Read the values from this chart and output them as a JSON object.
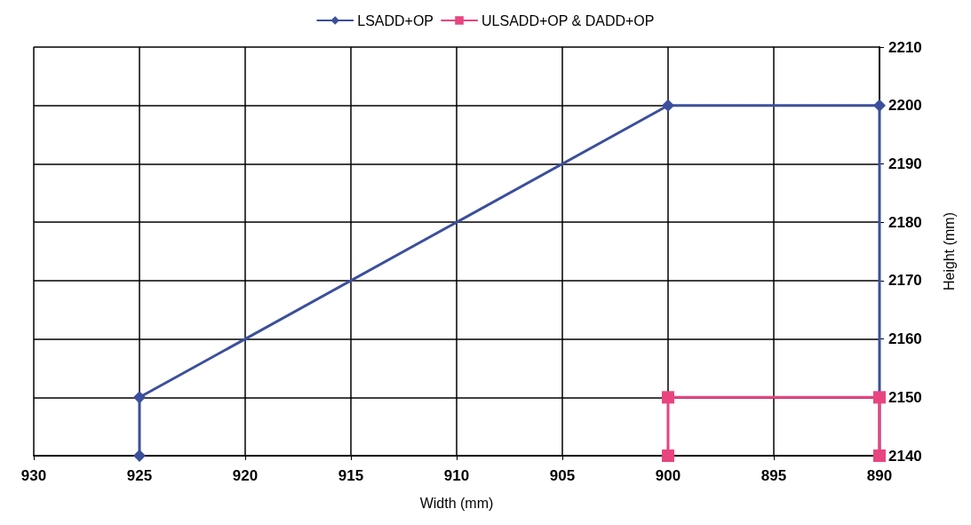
{
  "chart_data": {
    "type": "line",
    "xlabel": "Width (mm)",
    "ylabel": "Height (mm)",
    "xlim": [
      930,
      890
    ],
    "xticks": [
      930,
      925,
      920,
      915,
      910,
      905,
      900,
      895,
      890
    ],
    "ylim": [
      2140,
      2210
    ],
    "yticks": [
      2140,
      2150,
      2160,
      2170,
      2180,
      2190,
      2200,
      2210
    ],
    "grid": true,
    "legend": "top",
    "line_style": "solid",
    "series": [
      {
        "name": "LSADD+OP",
        "color": "#3b4f9c",
        "marker": "diamond",
        "x": [
          925,
          925,
          900,
          890,
          890
        ],
        "values": [
          2140,
          2150,
          2200,
          2200,
          2140
        ]
      },
      {
        "name": "ULSADD+OP & DADD+OP",
        "color": "#e8457f",
        "marker": "square",
        "x": [
          900,
          900,
          890,
          890
        ],
        "values": [
          2140,
          2150,
          2150,
          2140
        ]
      }
    ]
  }
}
